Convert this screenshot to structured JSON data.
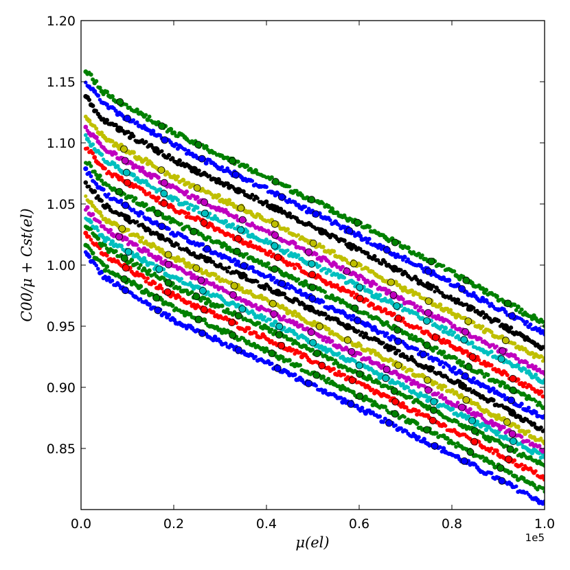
{
  "chart_data": {
    "type": "scatter",
    "title": "",
    "xlabel": "μ(el)",
    "ylabel": "C00/μ + Cst(el)",
    "x_offset_label": "1e5",
    "xlim": [
      0,
      100000
    ],
    "ylim": [
      0.8,
      1.2
    ],
    "x_ticks": [
      0,
      20000,
      40000,
      60000,
      80000,
      100000
    ],
    "x_tick_labels": [
      "0.0",
      "0.2",
      "0.4",
      "0.6",
      "0.8",
      "1.0"
    ],
    "y_ticks": [
      0.85,
      0.9,
      0.95,
      1.0,
      1.05,
      1.1,
      1.15,
      1.2
    ],
    "y_tick_labels": [
      "0.85",
      "0.90",
      "0.95",
      "1.00",
      "1.05",
      "1.10",
      "1.15",
      "1.20"
    ],
    "grid": false,
    "colors": {
      "blue": "#0000ff",
      "green": "#008000",
      "red": "#ff0000",
      "cyan": "#00bfbf",
      "magenta": "#bf00bf",
      "yellow": "#bfbf00",
      "black": "#000000"
    },
    "series": [
      {
        "color": "#0000ff",
        "x": [
          1000,
          5000,
          20000,
          40000,
          60000,
          80000,
          100000
        ],
        "y": [
          1.01,
          0.99,
          0.955,
          0.92,
          0.883,
          0.845,
          0.805
        ]
      },
      {
        "color": "#008000",
        "x": [
          1000,
          5000,
          20000,
          40000,
          60000,
          80000,
          100000
        ],
        "y": [
          1.016,
          0.998,
          0.965,
          0.93,
          0.893,
          0.855,
          0.815
        ]
      },
      {
        "color": "#ff0000",
        "x": [
          1000,
          5000,
          20000,
          40000,
          60000,
          80000,
          100000
        ],
        "y": [
          1.026,
          1.008,
          0.975,
          0.94,
          0.903,
          0.865,
          0.826
        ]
      },
      {
        "color": "#008000",
        "x": [
          1000,
          5000,
          20000,
          40000,
          60000,
          80000,
          100000
        ],
        "y": [
          1.033,
          1.015,
          0.983,
          0.948,
          0.911,
          0.874,
          0.835
        ]
      },
      {
        "color": "#00bfbf",
        "x": [
          1000,
          5000,
          20000,
          40000,
          60000,
          80000,
          100000
        ],
        "y": [
          1.04,
          1.022,
          0.99,
          0.955,
          0.918,
          0.881,
          0.843
        ]
      },
      {
        "color": "#bf00bf",
        "x": [
          1000,
          5000,
          20000,
          40000,
          60000,
          80000,
          100000
        ],
        "y": [
          1.047,
          1.03,
          0.998,
          0.963,
          0.926,
          0.888,
          0.848
        ]
      },
      {
        "color": "#bfbf00",
        "x": [
          1000,
          5000,
          20000,
          40000,
          60000,
          80000,
          100000
        ],
        "y": [
          1.056,
          1.038,
          1.006,
          0.971,
          0.934,
          0.896,
          0.855
        ]
      },
      {
        "color": "#000000",
        "x": [
          1000,
          5000,
          20000,
          40000,
          60000,
          80000,
          100000
        ],
        "y": [
          1.067,
          1.049,
          1.017,
          0.982,
          0.945,
          0.906,
          0.865
        ]
      },
      {
        "color": "#0000ff",
        "x": [
          1000,
          5000,
          20000,
          40000,
          60000,
          80000,
          100000
        ],
        "y": [
          1.077,
          1.059,
          1.026,
          0.991,
          0.954,
          0.915,
          0.875
        ]
      },
      {
        "color": "#008000",
        "x": [
          1000,
          5000,
          20000,
          40000,
          60000,
          80000,
          100000
        ],
        "y": [
          1.085,
          1.067,
          1.035,
          1.0,
          0.963,
          0.924,
          0.884
        ]
      },
      {
        "color": "#ff0000",
        "x": [
          1000,
          5000,
          20000,
          40000,
          60000,
          80000,
          100000
        ],
        "y": [
          1.097,
          1.078,
          1.046,
          1.011,
          0.973,
          0.934,
          0.893
        ]
      },
      {
        "color": "#00bfbf",
        "x": [
          1000,
          5000,
          20000,
          40000,
          60000,
          80000,
          100000
        ],
        "y": [
          1.105,
          1.086,
          1.054,
          1.019,
          0.982,
          0.944,
          0.905
        ]
      },
      {
        "color": "#bf00bf",
        "x": [
          1000,
          5000,
          20000,
          40000,
          60000,
          80000,
          100000
        ],
        "y": [
          1.113,
          1.095,
          1.063,
          1.028,
          0.99,
          0.951,
          0.912
        ]
      },
      {
        "color": "#bfbf00",
        "x": [
          1000,
          5000,
          20000,
          40000,
          60000,
          80000,
          100000
        ],
        "y": [
          1.122,
          1.104,
          1.072,
          1.037,
          0.999,
          0.961,
          0.922
        ]
      },
      {
        "color": "#000000",
        "x": [
          1000,
          5000,
          20000,
          40000,
          60000,
          80000,
          100000
        ],
        "y": [
          1.137,
          1.118,
          1.086,
          1.05,
          1.012,
          0.973,
          0.932
        ]
      },
      {
        "color": "#0000ff",
        "x": [
          1000,
          5000,
          20000,
          40000,
          60000,
          80000,
          100000
        ],
        "y": [
          1.15,
          1.131,
          1.098,
          1.062,
          1.024,
          0.985,
          0.944
        ]
      },
      {
        "color": "#008000",
        "x": [
          1000,
          5000,
          20000,
          40000,
          60000,
          80000,
          100000
        ],
        "y": [
          1.16,
          1.141,
          1.108,
          1.072,
          1.034,
          0.994,
          0.952
        ]
      }
    ]
  }
}
